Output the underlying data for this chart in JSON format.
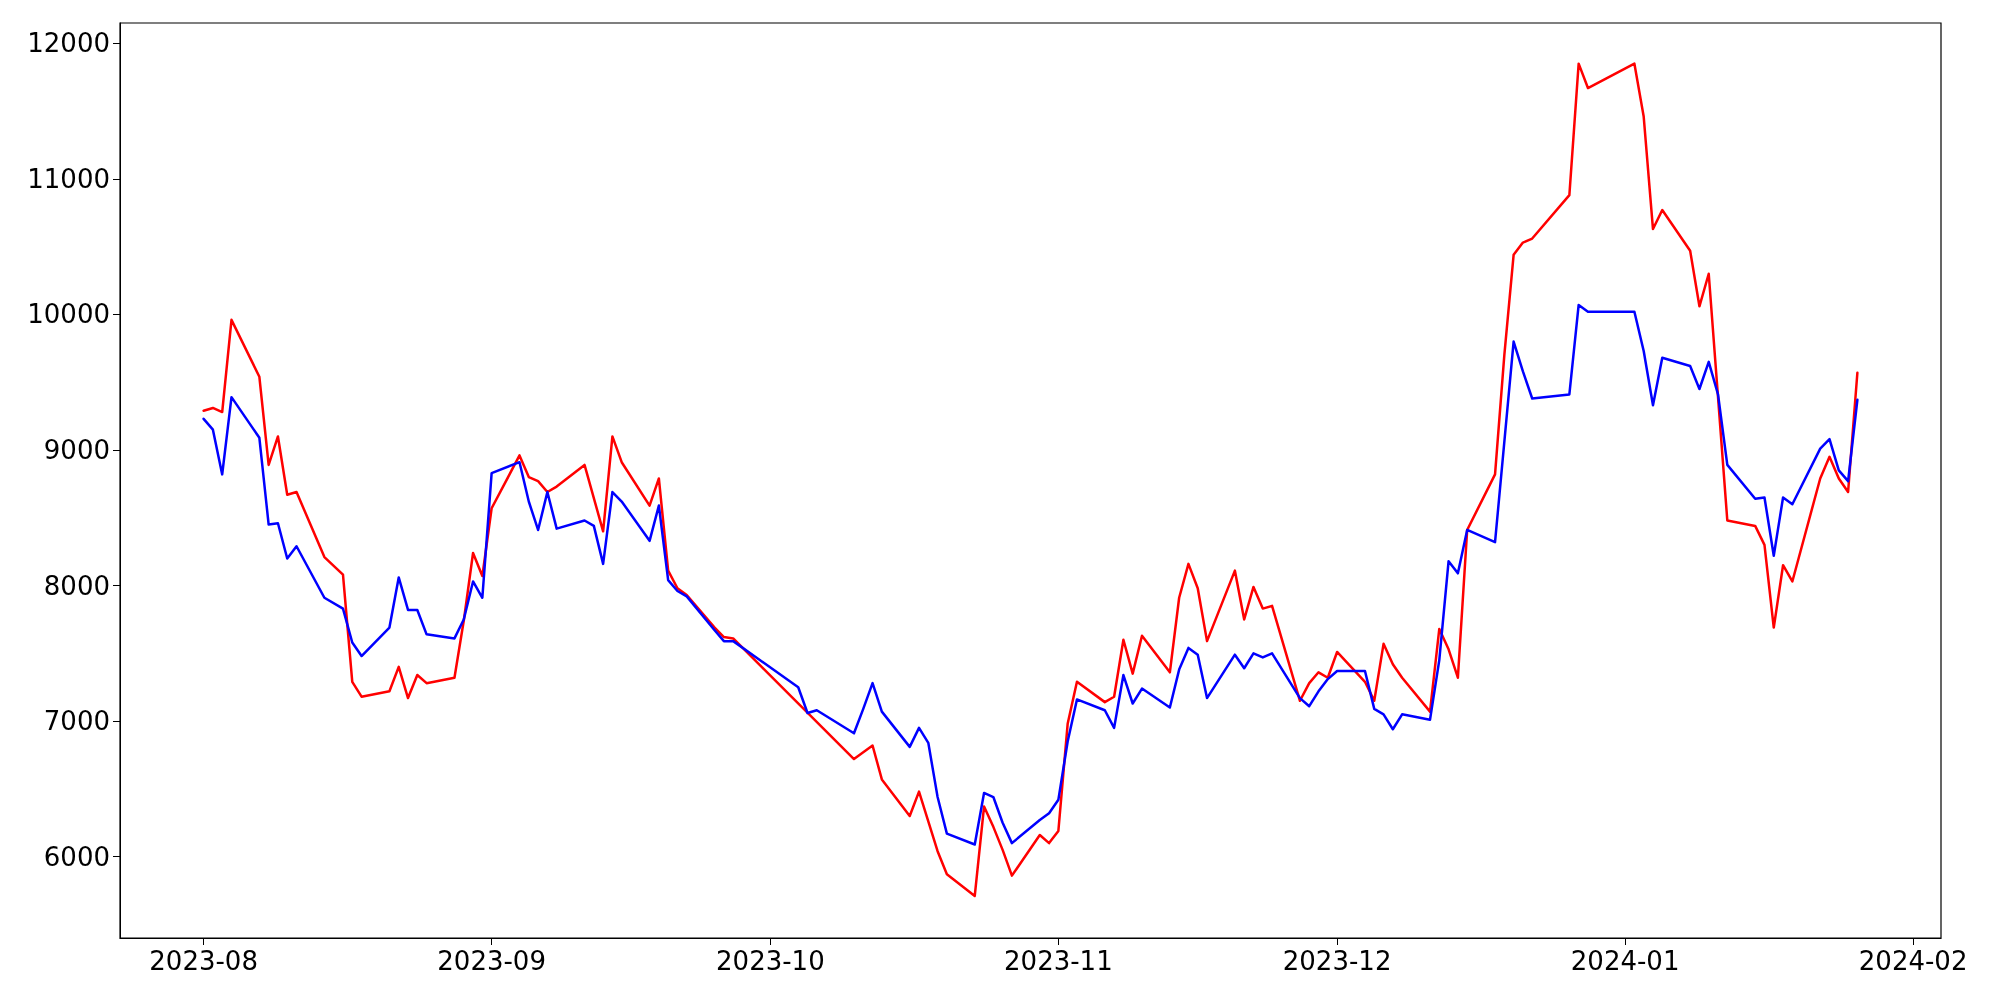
{
  "chart_data": {
    "type": "line",
    "xlim": [
      "2023-07-23",
      "2024-02-04"
    ],
    "ylim": [
      5400,
      12150
    ],
    "xticks": [
      {
        "value": "2023-08-01",
        "label": "2023-08"
      },
      {
        "value": "2023-09-01",
        "label": "2023-09"
      },
      {
        "value": "2023-10-01",
        "label": "2023-10"
      },
      {
        "value": "2023-11-01",
        "label": "2023-11"
      },
      {
        "value": "2023-12-01",
        "label": "2023-12"
      },
      {
        "value": "2024-01-01",
        "label": "2024-01"
      },
      {
        "value": "2024-02-01",
        "label": "2024-02"
      }
    ],
    "yticks": [
      6000,
      7000,
      8000,
      9000,
      10000,
      11000,
      12000
    ],
    "series": [
      {
        "color": "#ff0000",
        "x": [
          "2023-08-01",
          "2023-08-02",
          "2023-08-03",
          "2023-08-04",
          "2023-08-07",
          "2023-08-08",
          "2023-08-09",
          "2023-08-10",
          "2023-08-11",
          "2023-08-14",
          "2023-08-16",
          "2023-08-17",
          "2023-08-18",
          "2023-08-21",
          "2023-08-22",
          "2023-08-23",
          "2023-08-24",
          "2023-08-25",
          "2023-08-28",
          "2023-08-29",
          "2023-08-30",
          "2023-08-31",
          "2023-09-01",
          "2023-09-04",
          "2023-09-05",
          "2023-09-06",
          "2023-09-07",
          "2023-09-08",
          "2023-09-11",
          "2023-09-13",
          "2023-09-14",
          "2023-09-15",
          "2023-09-18",
          "2023-09-19",
          "2023-09-20",
          "2023-09-21",
          "2023-09-22",
          "2023-09-25",
          "2023-09-26",
          "2023-09-27",
          "2023-10-10",
          "2023-10-11",
          "2023-10-12",
          "2023-10-13",
          "2023-10-16",
          "2023-10-17",
          "2023-10-18",
          "2023-10-19",
          "2023-10-20",
          "2023-10-23",
          "2023-10-24",
          "2023-10-25",
          "2023-10-26",
          "2023-10-27",
          "2023-10-30",
          "2023-10-31",
          "2023-11-01",
          "2023-11-02",
          "2023-11-03",
          "2023-11-06",
          "2023-11-07",
          "2023-11-08",
          "2023-11-09",
          "2023-11-10",
          "2023-11-13",
          "2023-11-14",
          "2023-11-15",
          "2023-11-16",
          "2023-11-17",
          "2023-11-20",
          "2023-11-21",
          "2023-11-22",
          "2023-11-23",
          "2023-11-24",
          "2023-11-27",
          "2023-11-28",
          "2023-11-29",
          "2023-11-30",
          "2023-12-01",
          "2023-12-04",
          "2023-12-05",
          "2023-12-06",
          "2023-12-07",
          "2023-12-08",
          "2023-12-11",
          "2023-12-12",
          "2023-12-13",
          "2023-12-14",
          "2023-12-15",
          "2023-12-18",
          "2023-12-19",
          "2023-12-20",
          "2023-12-21",
          "2023-12-22",
          "2023-12-26",
          "2023-12-27",
          "2023-12-28",
          "2024-01-02",
          "2024-01-03",
          "2024-01-04",
          "2024-01-05",
          "2024-01-08",
          "2024-01-09",
          "2024-01-10",
          "2024-01-12",
          "2024-01-15",
          "2024-01-16",
          "2024-01-17",
          "2024-01-18",
          "2024-01-19",
          "2024-01-22",
          "2024-01-23",
          "2024-01-24",
          "2024-01-25",
          "2024-01-26"
        ],
        "values": [
          9290,
          9310,
          9280,
          9960,
          9540,
          8890,
          9100,
          8670,
          8690,
          8210,
          8080,
          7290,
          7180,
          7220,
          7400,
          7170,
          7340,
          7280,
          7320,
          7740,
          8240,
          8070,
          8570,
          8960,
          8800,
          8770,
          8690,
          8730,
          8890,
          8400,
          9100,
          8910,
          8590,
          8790,
          8110,
          7980,
          7930,
          7690,
          7620,
          7610,
          6720,
          6770,
          6820,
          6570,
          6300,
          6480,
          6260,
          6040,
          5870,
          5710,
          6370,
          6220,
          6050,
          5860,
          6160,
          6100,
          6190,
          6980,
          7290,
          7140,
          7180,
          7600,
          7350,
          7630,
          7360,
          7910,
          8160,
          7980,
          7590,
          8110,
          7750,
          7990,
          7830,
          7850,
          7150,
          7280,
          7360,
          7320,
          7510,
          7290,
          7150,
          7570,
          7420,
          7320,
          7070,
          7680,
          7530,
          7320,
          8410,
          8820,
          9700,
          10440,
          10530,
          10560,
          10880,
          11850,
          11670,
          11850,
          11460,
          10630,
          10770,
          10470,
          10060,
          10300,
          8480,
          8440,
          8300,
          7690,
          8150,
          8030,
          8790,
          8950,
          8790,
          8690,
          9570
        ]
      },
      {
        "color": "#0000ff",
        "x": [
          "2023-08-01",
          "2023-08-02",
          "2023-08-03",
          "2023-08-04",
          "2023-08-07",
          "2023-08-08",
          "2023-08-09",
          "2023-08-10",
          "2023-08-11",
          "2023-08-14",
          "2023-08-16",
          "2023-08-17",
          "2023-08-18",
          "2023-08-21",
          "2023-08-22",
          "2023-08-23",
          "2023-08-24",
          "2023-08-25",
          "2023-08-28",
          "2023-08-29",
          "2023-08-30",
          "2023-08-31",
          "2023-09-01",
          "2023-09-04",
          "2023-09-05",
          "2023-09-06",
          "2023-09-07",
          "2023-09-08",
          "2023-09-11",
          "2023-09-12",
          "2023-09-13",
          "2023-09-14",
          "2023-09-15",
          "2023-09-18",
          "2023-09-19",
          "2023-09-20",
          "2023-09-21",
          "2023-09-22",
          "2023-09-25",
          "2023-09-26",
          "2023-09-27",
          "2023-10-04",
          "2023-10-05",
          "2023-10-06",
          "2023-10-10",
          "2023-10-11",
          "2023-10-12",
          "2023-10-13",
          "2023-10-16",
          "2023-10-17",
          "2023-10-18",
          "2023-10-19",
          "2023-10-20",
          "2023-10-23",
          "2023-10-24",
          "2023-10-25",
          "2023-10-26",
          "2023-10-27",
          "2023-10-30",
          "2023-10-31",
          "2023-11-01",
          "2023-11-02",
          "2023-11-03",
          "2023-11-06",
          "2023-11-07",
          "2023-11-08",
          "2023-11-09",
          "2023-11-10",
          "2023-11-13",
          "2023-11-14",
          "2023-11-15",
          "2023-11-16",
          "2023-11-17",
          "2023-11-20",
          "2023-11-21",
          "2023-11-22",
          "2023-11-23",
          "2023-11-24",
          "2023-11-27",
          "2023-11-28",
          "2023-11-29",
          "2023-11-30",
          "2023-12-01",
          "2023-12-04",
          "2023-12-05",
          "2023-12-06",
          "2023-12-07",
          "2023-12-08",
          "2023-12-11",
          "2023-12-12",
          "2023-12-13",
          "2023-12-14",
          "2023-12-15",
          "2023-12-18",
          "2023-12-20",
          "2023-12-21",
          "2023-12-22",
          "2023-12-26",
          "2023-12-27",
          "2023-12-28",
          "2024-01-02",
          "2024-01-03",
          "2024-01-04",
          "2024-01-05",
          "2024-01-08",
          "2024-01-09",
          "2024-01-10",
          "2024-01-11",
          "2024-01-12",
          "2024-01-15",
          "2024-01-16",
          "2024-01-17",
          "2024-01-18",
          "2024-01-19",
          "2024-01-22",
          "2024-01-23",
          "2024-01-24",
          "2024-01-25",
          "2024-01-26"
        ],
        "values": [
          9230,
          9150,
          8820,
          9390,
          9090,
          8450,
          8460,
          8200,
          8290,
          7910,
          7830,
          7580,
          7480,
          7690,
          8060,
          7820,
          7820,
          7640,
          7610,
          7750,
          8030,
          7910,
          8830,
          8910,
          8620,
          8410,
          8690,
          8420,
          8480,
          8440,
          8160,
          8690,
          8620,
          8330,
          8590,
          8040,
          7960,
          7920,
          7670,
          7590,
          7590,
          7250,
          7060,
          7080,
          6910,
          7090,
          7280,
          7070,
          6810,
          6950,
          6840,
          6440,
          6170,
          6090,
          6470,
          6440,
          6250,
          6100,
          6270,
          6320,
          6420,
          6850,
          7160,
          7080,
          6950,
          7340,
          7130,
          7240,
          7100,
          7380,
          7540,
          7490,
          7170,
          7490,
          7390,
          7500,
          7470,
          7500,
          7170,
          7110,
          7220,
          7310,
          7370,
          7370,
          7090,
          7050,
          6940,
          7050,
          7010,
          7450,
          8180,
          8090,
          8410,
          8320,
          9800,
          9580,
          9380,
          9410,
          10070,
          10020,
          10020,
          9730,
          9330,
          9680,
          9620,
          9450,
          9650,
          9410,
          8890,
          8640,
          8650,
          8220,
          8650,
          8600,
          9010,
          9080,
          8850,
          8770,
          9370
        ]
      }
    ]
  }
}
